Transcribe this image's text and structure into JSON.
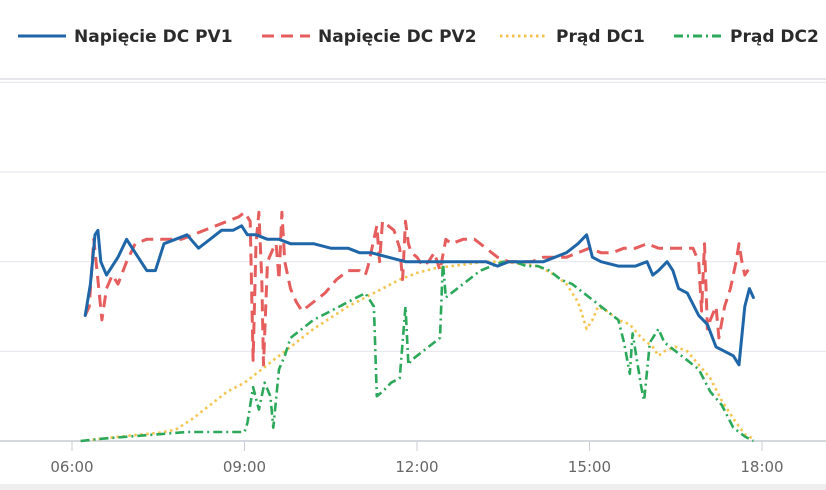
{
  "chart_data": {
    "type": "line",
    "title": "",
    "xlabel": "",
    "ylabel": "",
    "x_unit": "hours",
    "xlim": [
      5.25,
      18.5
    ],
    "ylim": [
      0,
      100
    ],
    "x_ticks": [
      6,
      9,
      12,
      15,
      18
    ],
    "x_tick_labels": [
      "06:00",
      "09:00",
      "12:00",
      "15:00",
      "18:00"
    ],
    "y_gridlines": [
      0,
      20,
      40,
      60,
      80
    ],
    "y_tick_labels_visible": false,
    "grid": "horizontal",
    "legend_position": "top",
    "series": [
      {
        "name": "Napięcie DC PV1",
        "color": "#1f66a8",
        "dash": "solid",
        "points": [
          [
            6.23,
            28
          ],
          [
            6.32,
            35
          ],
          [
            6.4,
            46
          ],
          [
            6.45,
            47
          ],
          [
            6.5,
            40
          ],
          [
            6.6,
            37
          ],
          [
            6.7,
            39
          ],
          [
            6.8,
            41
          ],
          [
            6.95,
            45
          ],
          [
            7.1,
            42
          ],
          [
            7.3,
            38
          ],
          [
            7.45,
            38
          ],
          [
            7.6,
            44
          ],
          [
            7.8,
            45
          ],
          [
            8.0,
            46
          ],
          [
            8.2,
            43
          ],
          [
            8.4,
            45
          ],
          [
            8.6,
            47
          ],
          [
            8.8,
            47
          ],
          [
            8.95,
            48
          ],
          [
            9.05,
            46
          ],
          [
            9.2,
            46
          ],
          [
            9.4,
            45
          ],
          [
            9.6,
            45
          ],
          [
            9.8,
            44
          ],
          [
            10.0,
            44
          ],
          [
            10.2,
            44
          ],
          [
            10.5,
            43
          ],
          [
            10.8,
            43
          ],
          [
            11.0,
            42
          ],
          [
            11.2,
            42
          ],
          [
            11.5,
            41
          ],
          [
            11.8,
            40
          ],
          [
            12.0,
            40
          ],
          [
            12.2,
            40
          ],
          [
            12.4,
            40
          ],
          [
            12.6,
            40
          ],
          [
            12.8,
            40
          ],
          [
            13.0,
            40
          ],
          [
            13.2,
            40
          ],
          [
            13.4,
            39
          ],
          [
            13.6,
            40
          ],
          [
            13.8,
            40
          ],
          [
            14.0,
            40
          ],
          [
            14.2,
            40
          ],
          [
            14.4,
            41
          ],
          [
            14.6,
            42
          ],
          [
            14.8,
            44
          ],
          [
            14.95,
            46
          ],
          [
            15.05,
            41
          ],
          [
            15.2,
            40
          ],
          [
            15.5,
            39
          ],
          [
            15.8,
            39
          ],
          [
            16.0,
            40
          ],
          [
            16.1,
            37
          ],
          [
            16.2,
            38
          ],
          [
            16.35,
            40
          ],
          [
            16.45,
            38
          ],
          [
            16.55,
            34
          ],
          [
            16.7,
            33
          ],
          [
            16.9,
            28
          ],
          [
            17.05,
            26
          ],
          [
            17.2,
            21
          ],
          [
            17.35,
            20
          ],
          [
            17.5,
            19
          ],
          [
            17.6,
            17
          ],
          [
            17.7,
            30
          ],
          [
            17.78,
            34
          ],
          [
            17.85,
            32
          ]
        ]
      },
      {
        "name": "Napięcie DC PV2",
        "color": "#e55d5d",
        "dash": "dashed",
        "points": [
          [
            6.23,
            28
          ],
          [
            6.3,
            30
          ],
          [
            6.38,
            45
          ],
          [
            6.45,
            36
          ],
          [
            6.52,
            27
          ],
          [
            6.6,
            34
          ],
          [
            6.7,
            37
          ],
          [
            6.8,
            35
          ],
          [
            6.95,
            40
          ],
          [
            7.1,
            44
          ],
          [
            7.3,
            45
          ],
          [
            7.5,
            45
          ],
          [
            7.7,
            45
          ],
          [
            7.9,
            45
          ],
          [
            8.1,
            46
          ],
          [
            8.3,
            47
          ],
          [
            8.5,
            48
          ],
          [
            8.7,
            49
          ],
          [
            8.9,
            50
          ],
          [
            9.0,
            51
          ],
          [
            9.1,
            49
          ],
          [
            9.15,
            18
          ],
          [
            9.2,
            44
          ],
          [
            9.25,
            51
          ],
          [
            9.3,
            36
          ],
          [
            9.33,
            17
          ],
          [
            9.4,
            40
          ],
          [
            9.5,
            43
          ],
          [
            9.55,
            44
          ],
          [
            9.6,
            36
          ],
          [
            9.65,
            51
          ],
          [
            9.7,
            40
          ],
          [
            9.8,
            34
          ],
          [
            9.9,
            31
          ],
          [
            10.0,
            29
          ],
          [
            10.1,
            30
          ],
          [
            10.2,
            31
          ],
          [
            10.4,
            33
          ],
          [
            10.6,
            36
          ],
          [
            10.8,
            38
          ],
          [
            11.0,
            38
          ],
          [
            11.1,
            37
          ],
          [
            11.15,
            39
          ],
          [
            11.2,
            42
          ],
          [
            11.3,
            48
          ],
          [
            11.35,
            40
          ],
          [
            11.4,
            49
          ],
          [
            11.5,
            48
          ],
          [
            11.6,
            47
          ],
          [
            11.7,
            43
          ],
          [
            11.75,
            36
          ],
          [
            11.8,
            49
          ],
          [
            11.85,
            44
          ],
          [
            11.9,
            42
          ],
          [
            12.0,
            41
          ],
          [
            12.1,
            39
          ],
          [
            12.2,
            40
          ],
          [
            12.3,
            42
          ],
          [
            12.4,
            38
          ],
          [
            12.5,
            45
          ],
          [
            12.6,
            44
          ],
          [
            12.8,
            45
          ],
          [
            13.0,
            45
          ],
          [
            13.2,
            43
          ],
          [
            13.4,
            41
          ],
          [
            13.6,
            40
          ],
          [
            13.8,
            40
          ],
          [
            14.0,
            40
          ],
          [
            14.2,
            41
          ],
          [
            14.4,
            41
          ],
          [
            14.6,
            41
          ],
          [
            14.8,
            42
          ],
          [
            15.0,
            43
          ],
          [
            15.2,
            42
          ],
          [
            15.4,
            42
          ],
          [
            15.6,
            43
          ],
          [
            15.8,
            43
          ],
          [
            16.0,
            44
          ],
          [
            16.2,
            43
          ],
          [
            16.4,
            43
          ],
          [
            16.6,
            43
          ],
          [
            16.8,
            43
          ],
          [
            16.9,
            40
          ],
          [
            16.95,
            29
          ],
          [
            17.0,
            44
          ],
          [
            17.05,
            25
          ],
          [
            17.1,
            27
          ],
          [
            17.2,
            30
          ],
          [
            17.25,
            23
          ],
          [
            17.35,
            30
          ],
          [
            17.45,
            34
          ],
          [
            17.55,
            40
          ],
          [
            17.6,
            44
          ],
          [
            17.65,
            40
          ],
          [
            17.7,
            37
          ],
          [
            17.8,
            39
          ]
        ]
      },
      {
        "name": "Prąd DC1",
        "color": "#f4c44f",
        "dash": "dotted",
        "points": [
          [
            6.15,
            0
          ],
          [
            6.5,
            0.5
          ],
          [
            7.0,
            1.2
          ],
          [
            7.5,
            1.8
          ],
          [
            7.8,
            2.5
          ],
          [
            8.1,
            5
          ],
          [
            8.4,
            8
          ],
          [
            8.7,
            11
          ],
          [
            9.0,
            13
          ],
          [
            9.3,
            16
          ],
          [
            9.6,
            19
          ],
          [
            9.9,
            22
          ],
          [
            10.2,
            25
          ],
          [
            10.5,
            27.5
          ],
          [
            10.8,
            30
          ],
          [
            11.1,
            32
          ],
          [
            11.4,
            34
          ],
          [
            11.7,
            36
          ],
          [
            12.0,
            37.5
          ],
          [
            12.3,
            38.5
          ],
          [
            12.6,
            39
          ],
          [
            12.9,
            39.5
          ],
          [
            13.2,
            40
          ],
          [
            13.5,
            40
          ],
          [
            13.8,
            39.5
          ],
          [
            14.1,
            39
          ],
          [
            14.4,
            37
          ],
          [
            14.6,
            35
          ],
          [
            14.8,
            31
          ],
          [
            14.9,
            27
          ],
          [
            14.95,
            25
          ],
          [
            15.05,
            27
          ],
          [
            15.15,
            30
          ],
          [
            15.3,
            29
          ],
          [
            15.5,
            27
          ],
          [
            15.7,
            26
          ],
          [
            15.9,
            23
          ],
          [
            16.1,
            21
          ],
          [
            16.2,
            19
          ],
          [
            16.3,
            20
          ],
          [
            16.5,
            21
          ],
          [
            16.7,
            20
          ],
          [
            16.9,
            17
          ],
          [
            17.1,
            14
          ],
          [
            17.3,
            9
          ],
          [
            17.5,
            5
          ],
          [
            17.7,
            1.5
          ],
          [
            17.85,
            0.5
          ]
        ]
      },
      {
        "name": "Prąd DC2",
        "color": "#2ca85b",
        "dash": "dashdot",
        "points": [
          [
            6.15,
            0
          ],
          [
            6.5,
            0.5
          ],
          [
            7.0,
            1
          ],
          [
            7.5,
            1.5
          ],
          [
            8.0,
            2
          ],
          [
            8.5,
            2
          ],
          [
            9.0,
            2
          ],
          [
            9.05,
            4
          ],
          [
            9.15,
            12
          ],
          [
            9.25,
            7
          ],
          [
            9.35,
            13
          ],
          [
            9.45,
            10
          ],
          [
            9.5,
            3
          ],
          [
            9.6,
            16
          ],
          [
            9.7,
            19
          ],
          [
            9.8,
            23
          ],
          [
            10.0,
            25
          ],
          [
            10.2,
            27
          ],
          [
            10.5,
            29
          ],
          [
            10.8,
            31
          ],
          [
            11.1,
            33
          ],
          [
            11.25,
            30
          ],
          [
            11.3,
            10
          ],
          [
            11.4,
            11
          ],
          [
            11.55,
            13
          ],
          [
            11.7,
            14
          ],
          [
            11.8,
            30
          ],
          [
            11.85,
            17
          ],
          [
            11.9,
            18
          ],
          [
            12.0,
            19
          ],
          [
            12.2,
            21
          ],
          [
            12.4,
            23
          ],
          [
            12.45,
            40
          ],
          [
            12.5,
            32
          ],
          [
            12.7,
            34
          ],
          [
            12.9,
            36
          ],
          [
            13.1,
            38
          ],
          [
            13.3,
            39
          ],
          [
            13.5,
            40
          ],
          [
            13.7,
            40
          ],
          [
            13.9,
            39
          ],
          [
            14.1,
            39
          ],
          [
            14.3,
            38
          ],
          [
            14.5,
            36
          ],
          [
            14.7,
            35
          ],
          [
            14.8,
            34
          ],
          [
            15.0,
            32
          ],
          [
            15.2,
            30
          ],
          [
            15.5,
            27
          ],
          [
            15.6,
            22
          ],
          [
            15.7,
            15
          ],
          [
            15.75,
            24
          ],
          [
            15.8,
            20
          ],
          [
            15.9,
            12
          ],
          [
            15.95,
            9
          ],
          [
            16.05,
            22
          ],
          [
            16.2,
            25
          ],
          [
            16.3,
            22
          ],
          [
            16.5,
            20
          ],
          [
            16.7,
            18
          ],
          [
            16.9,
            16
          ],
          [
            17.1,
            11
          ],
          [
            17.3,
            8
          ],
          [
            17.5,
            3
          ],
          [
            17.7,
            1
          ],
          [
            17.85,
            0
          ]
        ]
      }
    ]
  }
}
